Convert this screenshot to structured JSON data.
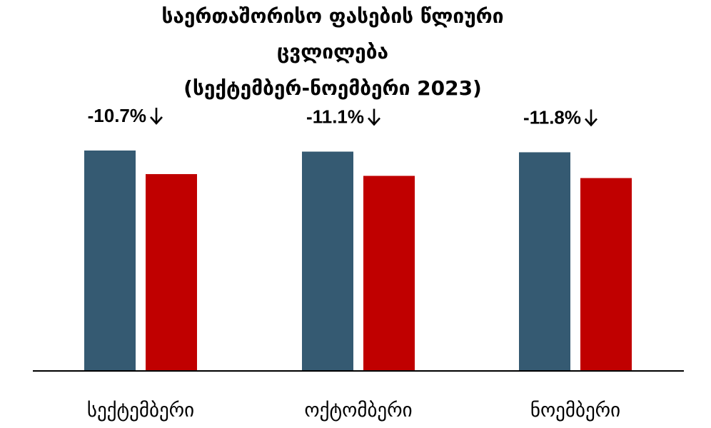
{
  "chart_data": {
    "type": "bar",
    "title_lines": [
      "საერთაშორისო ფასების წლიური",
      "ცვლილება",
      "(სექტემბერ-ნოემბერი 2023)"
    ],
    "categories": [
      "სექტემბერი",
      "ოქტომბერი",
      "ნოემბერი"
    ],
    "series": [
      {
        "values": [
          100,
          99.5,
          99.2
        ],
        "color": "#355a72"
      },
      {
        "values": [
          89.3,
          88.5,
          87.5
        ],
        "color": "#c00000"
      }
    ],
    "annotations": [
      "-10.7%",
      "-11.1%",
      "-11.8%"
    ],
    "annotation_icon": "arrow-down-icon",
    "ylim": [
      0,
      100
    ],
    "grid": false,
    "legend": "none"
  }
}
